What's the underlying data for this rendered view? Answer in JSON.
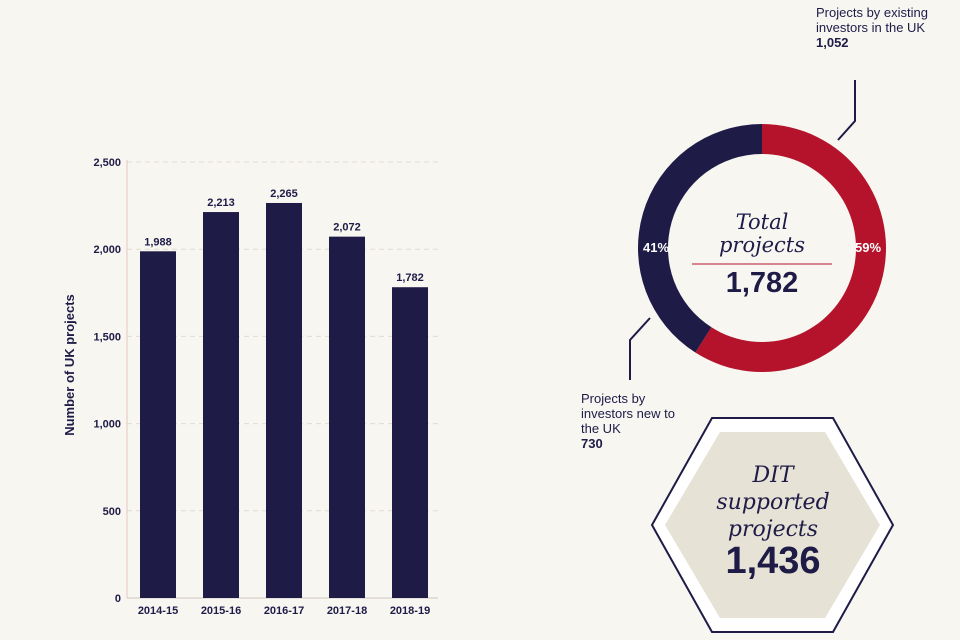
{
  "colors": {
    "navy": "#1e1b47",
    "red": "#b5132c",
    "hex_fill": "#e6e2d5",
    "grid": "#e4dcd2",
    "background": "#f7f6f1"
  },
  "chart_data": [
    {
      "type": "bar",
      "title": "",
      "xlabel": "",
      "ylabel": "Number of UK projects",
      "categories": [
        "2014-15",
        "2015-16",
        "2016-17",
        "2017-18",
        "2018-19"
      ],
      "values": [
        1988,
        2213,
        2265,
        2072,
        1782
      ],
      "value_labels": [
        "1,988",
        "2,213",
        "2,265",
        "2,072",
        "1,782"
      ],
      "ylim": [
        0,
        2500
      ],
      "yticks": [
        0,
        500,
        1000,
        1500,
        2000,
        2500
      ],
      "ytick_labels": [
        "0",
        "500",
        "1,000",
        "1,500",
        "2,000",
        "2,500"
      ],
      "grid": true
    },
    {
      "type": "pie",
      "variant": "donut",
      "categories": [
        "Projects by existing investors in the UK",
        "Projects by investors new to the UK"
      ],
      "values": [
        1052,
        730
      ],
      "percent_labels": [
        "59%",
        "41%"
      ],
      "center_title": "Total projects",
      "center_value": "1,782"
    }
  ],
  "callouts": {
    "existing": {
      "text": "Projects by existing investors in the UK",
      "value": "1,052"
    },
    "new": {
      "text": "Projects by investors new to the UK",
      "value": "730"
    }
  },
  "donut_center": {
    "line1": "Total",
    "line2": "projects",
    "value": "1,782"
  },
  "hexagon": {
    "line1": "DIT",
    "line2": "supported",
    "line3": "projects",
    "value": "1,436"
  }
}
